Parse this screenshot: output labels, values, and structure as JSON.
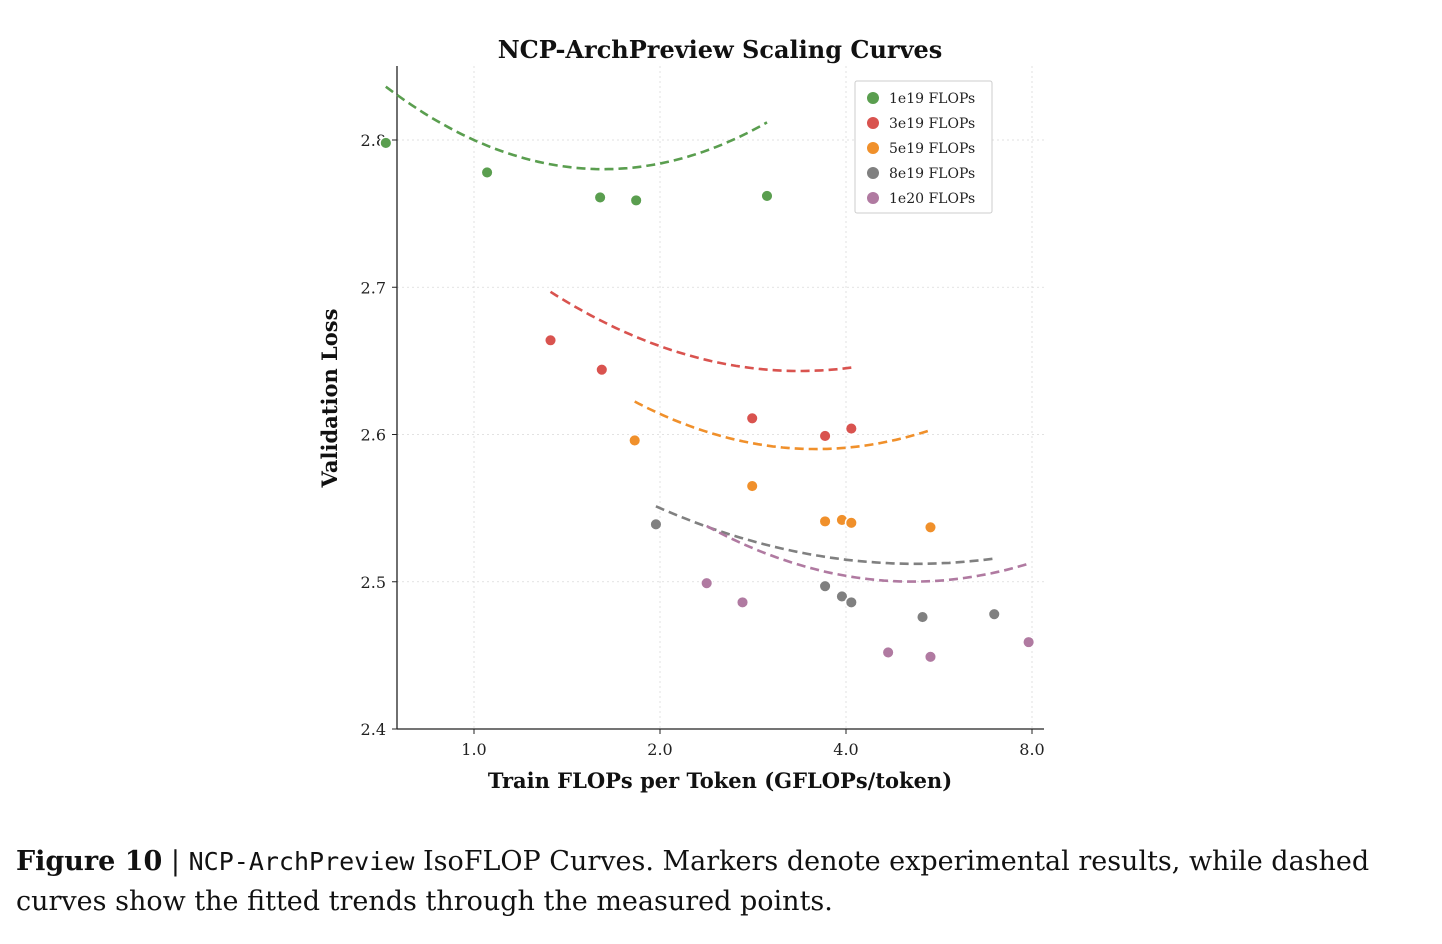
{
  "chart_data": {
    "type": "scatter",
    "title": "NCP-ArchPreview Scaling Curves",
    "xlabel": "Train FLOPs per Token (GFLOPs/token)",
    "ylabel": "Validation Loss",
    "x_scale": "log2",
    "xlim": [
      0.6,
      8.2
    ],
    "ylim": [
      2.4,
      2.85
    ],
    "xticks": [
      1.0,
      2.0,
      4.0,
      8.0
    ],
    "xtick_labels": [
      "1.0",
      "2.0",
      "4.0",
      "8.0"
    ],
    "yticks": [
      2.4,
      2.5,
      2.6,
      2.7,
      2.8
    ],
    "ytick_labels": [
      "2.4",
      "2.5",
      "2.6",
      "2.7",
      "2.8"
    ],
    "grid": true,
    "legend_position": "top-right",
    "series": [
      {
        "name": "1e19 FLOPs",
        "color": "#5a9e4f",
        "x": [
          0.72,
          1.05,
          1.6,
          1.83,
          2.98
        ],
        "y": [
          2.798,
          2.778,
          2.761,
          2.759,
          2.762
        ],
        "fit": [
          2.8,
          -0.057,
          0.041
        ]
      },
      {
        "name": "3e19 FLOPs",
        "color": "#d9534f",
        "x": [
          1.33,
          1.61,
          2.82,
          3.7,
          4.08
        ],
        "y": [
          2.664,
          2.644,
          2.611,
          2.599,
          2.604
        ],
        "fit": [
          2.735,
          -0.105,
          0.03
        ]
      },
      {
        "name": "5e19 FLOPs",
        "color": "#f0902b",
        "x": [
          1.82,
          2.82,
          3.7,
          3.94,
          4.08,
          5.48
        ],
        "y": [
          2.596,
          2.565,
          2.541,
          2.542,
          2.54,
          2.537
        ],
        "fit": [
          2.705,
          -0.125,
          0.034
        ]
      },
      {
        "name": "8e19 FLOPs",
        "color": "#808080",
        "x": [
          1.97,
          3.7,
          3.94,
          4.08,
          5.32,
          6.95
        ],
        "y": [
          2.539,
          2.497,
          2.49,
          2.486,
          2.476,
          2.478
        ],
        "fit": [
          2.625,
          -0.095,
          0.02
        ]
      },
      {
        "name": "1e20 FLOPs",
        "color": "#b07aa1",
        "x": [
          2.38,
          2.72,
          4.68,
          5.48,
          7.9
        ],
        "y": [
          2.499,
          2.486,
          2.452,
          2.449,
          2.459
        ],
        "fit": [
          2.672,
          -0.146,
          0.031
        ]
      }
    ]
  },
  "caption": {
    "figure_label": "Figure 10",
    "separator": "|",
    "model_name": "NCP-ArchPreview",
    "text": "IsoFLOP Curves. Markers denote experimental results, while dashed curves show the fitted trends through the measured points."
  }
}
